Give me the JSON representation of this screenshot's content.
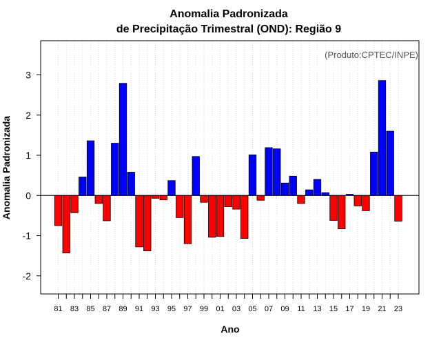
{
  "chart_data": {
    "type": "bar",
    "title": [
      "Anomalia Padronizada",
      "de Precipitação Trimestral (OND): Região 9"
    ],
    "xlabel": "Ano",
    "ylabel": "Anomalia Padronizada",
    "credit": "(Produto:CPTEC/INPE)",
    "ylim": [
      -2.45,
      3.85
    ],
    "yticks": [
      -2,
      -1,
      0,
      1,
      2,
      3
    ],
    "xtick_labels": [
      "81",
      "83",
      "85",
      "87",
      "89",
      "91",
      "93",
      "95",
      "97",
      "99",
      "01",
      "03",
      "05",
      "07",
      "09",
      "11",
      "13",
      "15",
      "17",
      "19",
      "21",
      "23"
    ],
    "categories": [
      "81",
      "82",
      "83",
      "84",
      "85",
      "86",
      "87",
      "88",
      "89",
      "90",
      "91",
      "92",
      "93",
      "94",
      "95",
      "96",
      "97",
      "98",
      "99",
      "00",
      "01",
      "02",
      "03",
      "04",
      "05",
      "06",
      "07",
      "08",
      "09",
      "10",
      "11",
      "12",
      "13",
      "14",
      "15",
      "16",
      "17",
      "18",
      "19",
      "20",
      "21",
      "22",
      "23"
    ],
    "values": [
      -0.75,
      -1.43,
      -0.43,
      0.46,
      1.36,
      -0.2,
      -0.63,
      1.3,
      2.79,
      0.58,
      -1.28,
      -1.38,
      -0.07,
      -0.11,
      0.37,
      -0.55,
      -1.2,
      0.97,
      -0.17,
      -1.04,
      -1.02,
      -0.28,
      -0.34,
      -1.07,
      1.01,
      -0.12,
      1.19,
      1.16,
      0.31,
      0.48,
      -0.2,
      0.14,
      0.4,
      0.07,
      -0.62,
      -0.83,
      0.03,
      -0.26,
      -0.38,
      1.08,
      2.86,
      1.6,
      -0.64
    ],
    "grid": "vertical-dotted",
    "colors": {
      "positive": "#0000ff",
      "negative": "#ff0000",
      "zero_line": "#000000",
      "grid": "#d3d3d3",
      "credit": "#555555"
    }
  }
}
